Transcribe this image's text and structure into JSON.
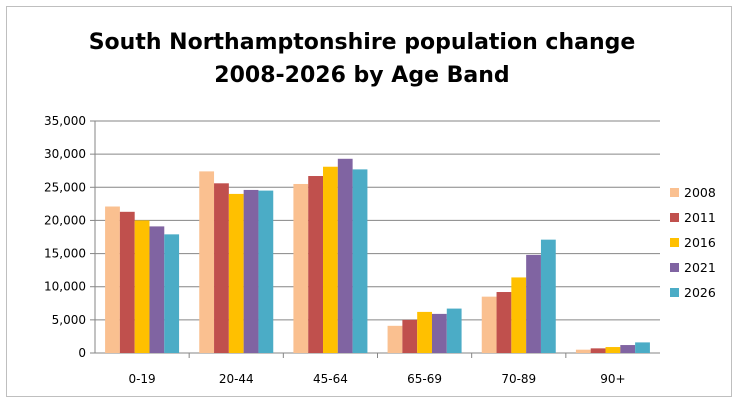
{
  "chart_data": {
    "type": "bar",
    "title_line1": "South Northamptonshire population change",
    "title_line2": "2008-2026 by Age Band",
    "xlabel": "",
    "ylabel": "",
    "ylim": [
      0,
      35000
    ],
    "y_ticks": [
      "0",
      "5,000",
      "10,000",
      "15,000",
      "20,000",
      "25,000",
      "30,000",
      "35,000"
    ],
    "categories": [
      "0-19",
      "20-44",
      "45-64",
      "65-69",
      "70-89",
      "90+"
    ],
    "series": [
      {
        "name": "2008",
        "color": "#FAC090",
        "values": [
          22100,
          27400,
          25500,
          4100,
          8500,
          500
        ]
      },
      {
        "name": "2011",
        "color": "#C0504D",
        "values": [
          21300,
          25600,
          26700,
          5000,
          9200,
          700
        ]
      },
      {
        "name": "2016",
        "color": "#FFC000",
        "values": [
          20000,
          24000,
          28100,
          6200,
          11400,
          900
        ]
      },
      {
        "name": "2021",
        "color": "#8064A2",
        "values": [
          19100,
          24600,
          29300,
          5900,
          14800,
          1200
        ]
      },
      {
        "name": "2026",
        "color": "#4BACC6",
        "values": [
          17900,
          24500,
          27700,
          6700,
          17100,
          1600
        ]
      }
    ],
    "grid": true,
    "legend": "right"
  }
}
